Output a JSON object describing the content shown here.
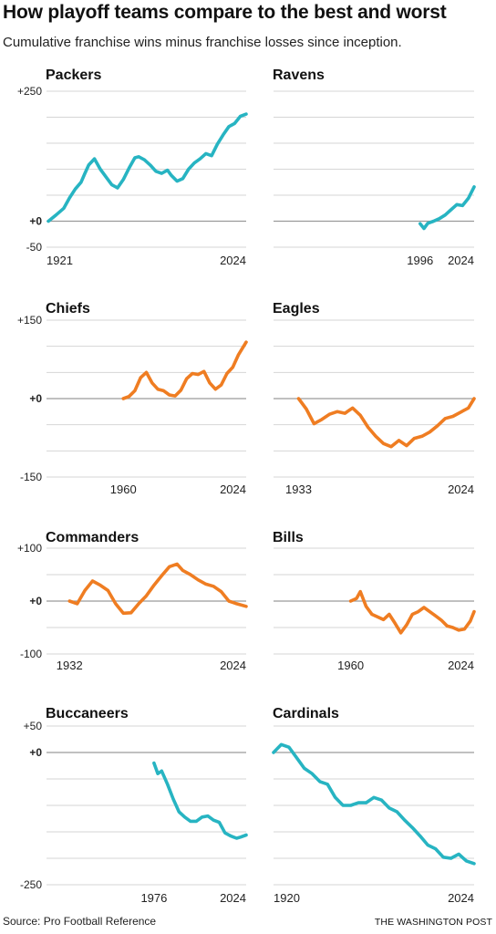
{
  "title": "How playoff teams compare to the best and worst",
  "subtitle": "Cumulative franchise wins minus franchise losses since inception.",
  "source": "Source: Pro Football Reference",
  "credit": "THE WASHINGTON POST",
  "colors": {
    "teal": "#27b4c2",
    "orange": "#ef7d22",
    "grid": "#d6d6d6",
    "zero": "#9a9a9a"
  },
  "chart_data": [
    {
      "type": "line",
      "name": "Packers",
      "color": "#27b4c2",
      "ylim": [
        -50,
        250
      ],
      "ticks": [
        "+250",
        "+0",
        "-50"
      ],
      "tick_values": [
        250,
        0,
        -50
      ],
      "xlabels": [
        "1921",
        "2024"
      ],
      "x": [
        1921,
        1925,
        1929,
        1932,
        1935,
        1938,
        1940,
        1942,
        1945,
        1948,
        1951,
        1954,
        1957,
        1960,
        1963,
        1966,
        1968,
        1971,
        1974,
        1977,
        1980,
        1983,
        1985,
        1988,
        1991,
        1994,
        1997,
        2000,
        2003,
        2006,
        2009,
        2012,
        2015,
        2018,
        2021,
        2024
      ],
      "y": [
        0,
        12,
        25,
        45,
        62,
        75,
        92,
        108,
        120,
        100,
        85,
        70,
        64,
        80,
        102,
        122,
        124,
        118,
        108,
        96,
        92,
        98,
        88,
        77,
        82,
        100,
        112,
        120,
        130,
        126,
        148,
        166,
        182,
        188,
        202,
        206
      ]
    },
    {
      "type": "line",
      "name": "Ravens",
      "color": "#27b4c2",
      "ylim": [
        -50,
        250
      ],
      "ticks": [],
      "tick_values": [],
      "xlabels": [
        "1996",
        "2024"
      ],
      "x": [
        1996,
        1998,
        2000,
        2003,
        2006,
        2009,
        2012,
        2015,
        2018,
        2021,
        2024
      ],
      "y": [
        -5,
        -14,
        -4,
        0,
        5,
        12,
        22,
        32,
        30,
        44,
        66
      ]
    },
    {
      "type": "line",
      "name": "Chiefs",
      "color": "#ef7d22",
      "ylim": [
        -150,
        150
      ],
      "ticks": [
        "+150",
        "+0",
        "-150"
      ],
      "tick_values": [
        150,
        0,
        -150
      ],
      "xlabels": [
        "1960",
        "2024"
      ],
      "x": [
        1960,
        1963,
        1966,
        1969,
        1972,
        1975,
        1978,
        1981,
        1984,
        1987,
        1990,
        1993,
        1996,
        1999,
        2002,
        2005,
        2008,
        2011,
        2014,
        2017,
        2020,
        2024
      ],
      "y": [
        0,
        4,
        15,
        40,
        50,
        30,
        18,
        15,
        7,
        5,
        16,
        38,
        48,
        46,
        52,
        30,
        18,
        26,
        48,
        60,
        84,
        108
      ]
    },
    {
      "type": "line",
      "name": "Eagles",
      "color": "#ef7d22",
      "ylim": [
        -150,
        150
      ],
      "ticks": [],
      "tick_values": [],
      "xlabels": [
        "1933",
        "2024"
      ],
      "x": [
        1933,
        1937,
        1941,
        1945,
        1949,
        1953,
        1957,
        1961,
        1965,
        1969,
        1973,
        1977,
        1981,
        1985,
        1989,
        1993,
        1997,
        2001,
        2005,
        2009,
        2013,
        2017,
        2021,
        2024
      ],
      "y": [
        0,
        -20,
        -48,
        -40,
        -30,
        -25,
        -28,
        -18,
        -32,
        -55,
        -72,
        -86,
        -92,
        -80,
        -90,
        -76,
        -72,
        -64,
        -52,
        -38,
        -34,
        -26,
        -18,
        0
      ]
    },
    {
      "type": "line",
      "name": "Commanders",
      "color": "#ef7d22",
      "ylim": [
        -100,
        100
      ],
      "ticks": [
        "+100",
        "+0",
        "-100"
      ],
      "tick_values": [
        100,
        0,
        -100
      ],
      "xlabels": [
        "1932",
        "2024"
      ],
      "x": [
        1932,
        1936,
        1940,
        1944,
        1948,
        1952,
        1956,
        1960,
        1964,
        1968,
        1972,
        1976,
        1980,
        1984,
        1988,
        1991,
        1995,
        1999,
        2003,
        2007,
        2011,
        2015,
        2019,
        2024
      ],
      "y": [
        0,
        -5,
        20,
        38,
        30,
        20,
        -5,
        -23,
        -22,
        -5,
        10,
        30,
        48,
        65,
        70,
        58,
        50,
        40,
        32,
        28,
        18,
        0,
        -5,
        -10
      ]
    },
    {
      "type": "line",
      "name": "Bills",
      "color": "#ef7d22",
      "ylim": [
        -100,
        100
      ],
      "ticks": [],
      "tick_values": [],
      "xlabels": [
        "1960",
        "2024"
      ],
      "x": [
        1960,
        1963,
        1965,
        1968,
        1971,
        1974,
        1977,
        1980,
        1983,
        1986,
        1989,
        1992,
        1995,
        1998,
        2001,
        2004,
        2007,
        2010,
        2013,
        2016,
        2019,
        2022,
        2024
      ],
      "y": [
        0,
        5,
        18,
        -10,
        -25,
        -30,
        -35,
        -25,
        -42,
        -60,
        -45,
        -25,
        -20,
        -12,
        -20,
        -28,
        -36,
        -47,
        -50,
        -55,
        -53,
        -38,
        -20
      ]
    },
    {
      "type": "line",
      "name": "Buccaneers",
      "color": "#27b4c2",
      "ylim": [
        -250,
        50
      ],
      "ticks": [
        "+50",
        "+0",
        "-250"
      ],
      "tick_values": [
        50,
        0,
        -250
      ],
      "xlabels": [
        "1976",
        "2024"
      ],
      "x": [
        1976,
        1978,
        1980,
        1983,
        1986,
        1989,
        1992,
        1995,
        1998,
        2001,
        2004,
        2007,
        2010,
        2013,
        2016,
        2019,
        2021,
        2024
      ],
      "y": [
        -20,
        -40,
        -35,
        -60,
        -88,
        -112,
        -122,
        -130,
        -130,
        -122,
        -120,
        -128,
        -132,
        -152,
        -158,
        -162,
        -160,
        -156
      ]
    },
    {
      "type": "line",
      "name": "Cardinals",
      "color": "#27b4c2",
      "ylim": [
        -250,
        50
      ],
      "ticks": [],
      "tick_values": [],
      "xlabels": [
        "1920",
        "2024"
      ],
      "x": [
        1920,
        1924,
        1928,
        1932,
        1936,
        1940,
        1944,
        1948,
        1952,
        1956,
        1960,
        1964,
        1968,
        1972,
        1976,
        1980,
        1984,
        1988,
        1992,
        1996,
        2000,
        2004,
        2008,
        2012,
        2016,
        2020,
        2024
      ],
      "y": [
        0,
        15,
        10,
        -10,
        -30,
        -40,
        -55,
        -60,
        -85,
        -100,
        -100,
        -95,
        -95,
        -85,
        -90,
        -105,
        -112,
        -128,
        -142,
        -158,
        -175,
        -182,
        -198,
        -200,
        -192,
        -205,
        -210
      ]
    }
  ]
}
